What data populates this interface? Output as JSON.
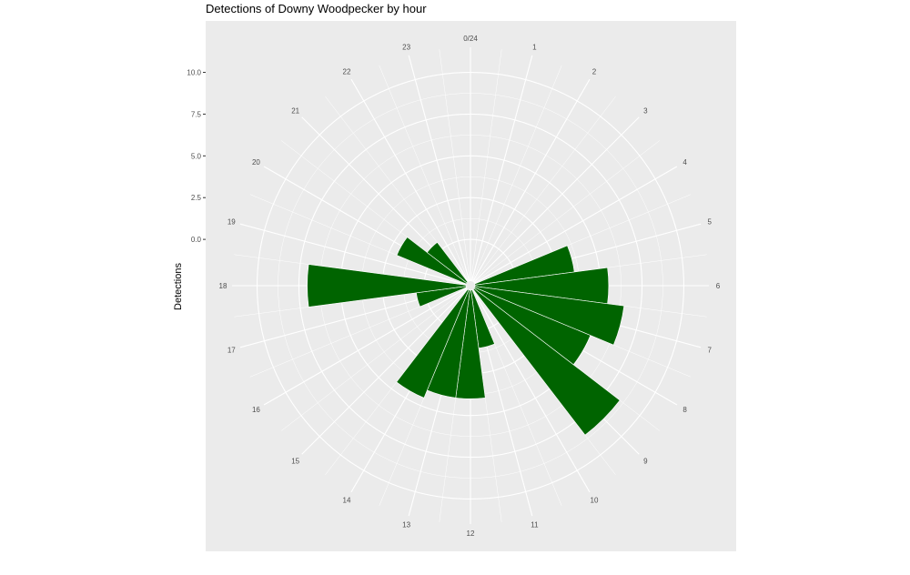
{
  "chart_data": {
    "type": "bar",
    "coord": "polar",
    "title": "Detections of Downy Woodpecker by hour",
    "xlabel": "",
    "ylabel": "Detections",
    "hour_labels": [
      "0/24",
      "1",
      "2",
      "3",
      "4",
      "5",
      "6",
      "7",
      "8",
      "9",
      "10",
      "11",
      "12",
      "13",
      "14",
      "15",
      "16",
      "17",
      "18",
      "19",
      "20",
      "21",
      "22",
      "23"
    ],
    "y_ticks": [
      "0.0",
      "2.5",
      "5.0",
      "7.5",
      "10.0"
    ],
    "y_tick_values": [
      0,
      2.5,
      5,
      7.5,
      10
    ],
    "ylim": [
      -2.5,
      11.5
    ],
    "hours": [
      0,
      1,
      2,
      3,
      4,
      5,
      6,
      7,
      8,
      9,
      10,
      11,
      12,
      13,
      14,
      15,
      16,
      17,
      18,
      19,
      20,
      21,
      22,
      23
    ],
    "values": [
      0,
      0,
      0,
      0,
      0,
      3.5,
      5.5,
      6.5,
      5.0,
      8.5,
      0,
      1.0,
      4.0,
      4.0,
      4.5,
      0,
      0,
      0.5,
      7.0,
      0,
      2.0,
      0.5,
      0,
      0
    ],
    "bar_color": "#006400",
    "panel_color": "#ebebeb",
    "grid_color": "#ffffff",
    "grid": true
  }
}
